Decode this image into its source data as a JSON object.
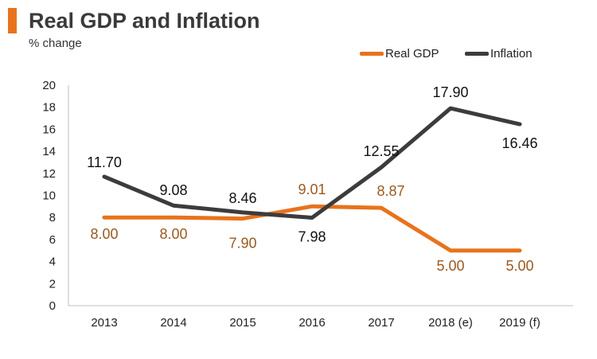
{
  "header": {
    "title": "Real GDP and Inflation",
    "subtitle": "% change"
  },
  "colors": {
    "accent": "#e8731c",
    "real_gdp": "#e8731c",
    "inflation": "#3c3c3c",
    "real_gdp_label": "#9a5a1e",
    "inflation_label": "#111111",
    "axis": "#bfbfbf"
  },
  "chart_data": {
    "type": "line",
    "title": "Real GDP and Inflation",
    "subtitle": "% change",
    "xlabel": "",
    "ylabel": "",
    "categories": [
      "2013",
      "2014",
      "2015",
      "2016",
      "2017",
      "2018 (e)",
      "2019 (f)"
    ],
    "ylim": [
      0,
      20
    ],
    "yticks": [
      0,
      2,
      4,
      6,
      8,
      10,
      12,
      14,
      16,
      18,
      20
    ],
    "grid": false,
    "legend": "top-right",
    "series": [
      {
        "name": "Real GDP",
        "values": [
          8.0,
          8.0,
          7.9,
          9.01,
          8.87,
          5.0,
          5.0
        ],
        "labels": [
          "8.00",
          "8.00",
          "7.90",
          "9.01",
          "8.87",
          "5.00",
          "5.00"
        ]
      },
      {
        "name": "Inflation",
        "values": [
          11.7,
          9.08,
          8.46,
          7.98,
          12.55,
          17.9,
          16.46
        ],
        "labels": [
          "11.70",
          "9.08",
          "8.46",
          "7.98",
          "12.55",
          "17.90",
          "16.46"
        ]
      }
    ]
  }
}
